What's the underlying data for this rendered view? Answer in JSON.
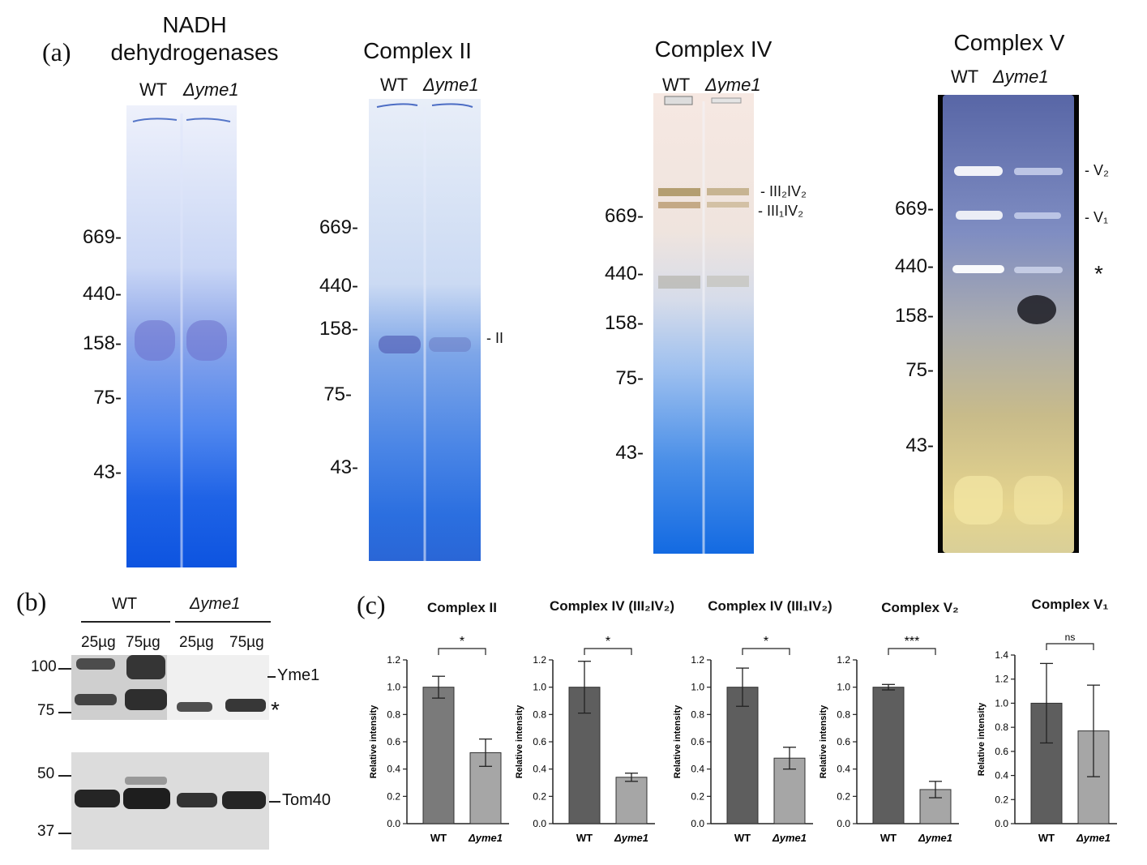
{
  "panel_labels": {
    "a": "(a)",
    "b": "(b)",
    "c": "(c)"
  },
  "gels": [
    {
      "title_lines": [
        "NADH",
        "dehydrogenases"
      ],
      "lanes": [
        "WT",
        "Δyme1"
      ],
      "markers": [
        "669-",
        "440-",
        "158-",
        "75-",
        "43-"
      ],
      "band_labels": []
    },
    {
      "title_lines": [
        "Complex II"
      ],
      "lanes": [
        "WT",
        "Δyme1"
      ],
      "markers": [
        "669-",
        "440-",
        "158-",
        "75-",
        "43-"
      ],
      "band_labels": [
        "- II"
      ]
    },
    {
      "title_lines": [
        "Complex IV"
      ],
      "lanes": [
        "WT",
        "Δyme1"
      ],
      "markers": [
        "669-",
        "440-",
        "158-",
        "75-",
        "43-"
      ],
      "band_labels": [
        "- III₂IV₂",
        "- III₁IV₂"
      ]
    },
    {
      "title_lines": [
        "Complex V"
      ],
      "lanes": [
        "WT",
        "Δyme1"
      ],
      "markers": [
        "669-",
        "440-",
        "158-",
        "75-",
        "43-"
      ],
      "band_labels": [
        "- V₂",
        "- V₁",
        "*"
      ]
    }
  ],
  "western": {
    "group_labels": [
      "WT",
      "Δyme1"
    ],
    "loads": [
      "25µg",
      "75µg",
      "25µg",
      "75µg"
    ],
    "markers_top": [
      "100",
      "75"
    ],
    "markers_bottom": [
      "50",
      "37"
    ],
    "band_labels": [
      "Yme1",
      "*",
      "Tom40"
    ]
  },
  "chart_data": [
    {
      "type": "bar",
      "title": "Complex II",
      "categories": [
        "WT",
        "Δyme1"
      ],
      "values": [
        1.0,
        0.52
      ],
      "errors": [
        0.08,
        0.1
      ],
      "ylim": [
        0,
        1.2
      ],
      "yticks": [
        "0.0",
        "0.2",
        "0.4",
        "0.6",
        "0.8",
        "1.0",
        "1.2"
      ],
      "ylabel": "Relative intensity",
      "significance": "*",
      "colors": [
        "#7a7a7a",
        "#a6a6a6"
      ]
    },
    {
      "type": "bar",
      "title": "Complex IV (III₂IV₂)",
      "categories": [
        "WT",
        "Δyme1"
      ],
      "values": [
        1.0,
        0.34
      ],
      "errors": [
        0.19,
        0.03
      ],
      "ylim": [
        0,
        1.2
      ],
      "yticks": [
        "0.0",
        "0.2",
        "0.4",
        "0.6",
        "0.8",
        "1.0",
        "1.2"
      ],
      "ylabel": "Relative intensity",
      "significance": "*",
      "colors": [
        "#5e5e5e",
        "#a6a6a6"
      ]
    },
    {
      "type": "bar",
      "title": "Complex IV (III₁IV₂)",
      "categories": [
        "WT",
        "Δyme1"
      ],
      "values": [
        1.0,
        0.48
      ],
      "errors": [
        0.14,
        0.08
      ],
      "ylim": [
        0,
        1.2
      ],
      "yticks": [
        "0.0",
        "0.2",
        "0.4",
        "0.6",
        "0.8",
        "1.0",
        "1.2"
      ],
      "ylabel": "Relative intensity",
      "significance": "*",
      "colors": [
        "#5e5e5e",
        "#a6a6a6"
      ]
    },
    {
      "type": "bar",
      "title": "Complex V₂",
      "categories": [
        "WT",
        "Δyme1"
      ],
      "values": [
        1.0,
        0.25
      ],
      "errors": [
        0.02,
        0.06
      ],
      "ylim": [
        0,
        1.2
      ],
      "yticks": [
        "0.0",
        "0.2",
        "0.4",
        "0.6",
        "0.8",
        "1.0",
        "1.2"
      ],
      "ylabel": "Relative intensity",
      "significance": "***",
      "colors": [
        "#5e5e5e",
        "#a6a6a6"
      ]
    },
    {
      "type": "bar",
      "title": "Complex V₁",
      "categories": [
        "WT",
        "Δyme1"
      ],
      "values": [
        1.0,
        0.77
      ],
      "errors": [
        0.33,
        0.38
      ],
      "ylim": [
        0,
        1.4
      ],
      "yticks": [
        "0.0",
        "0.2",
        "0.4",
        "0.6",
        "0.8",
        "1.0",
        "1.2",
        "1.4"
      ],
      "ylabel": "Relative intensity",
      "significance": "ns",
      "colors": [
        "#5e5e5e",
        "#a6a6a6"
      ]
    }
  ]
}
